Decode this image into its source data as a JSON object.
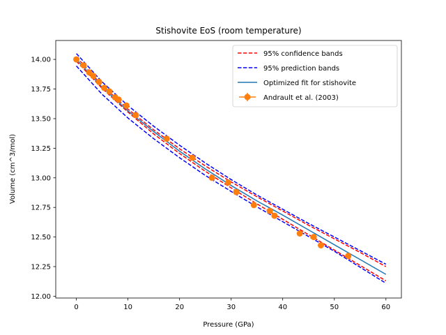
{
  "chart_data": {
    "type": "line",
    "title": "Stishovite EoS (room temperature)",
    "xlabel": "Pressure (GPa)",
    "ylabel": "Volume (cm^3/mol)",
    "xlim": [
      -4,
      63
    ],
    "ylim": [
      11.985,
      14.16
    ],
    "xticks": [
      0,
      10,
      20,
      30,
      40,
      50,
      60
    ],
    "yticks": [
      12.0,
      12.25,
      12.5,
      12.75,
      13.0,
      13.25,
      13.5,
      13.75,
      14.0
    ],
    "xtick_labels": [
      "0",
      "10",
      "20",
      "30",
      "40",
      "50",
      "60"
    ],
    "ytick_labels": [
      "12.00",
      "12.25",
      "12.50",
      "12.75",
      "13.00",
      "13.25",
      "13.50",
      "13.75",
      "14.00"
    ],
    "grid": false,
    "legend_position": "upper right",
    "legend": [
      "95% confidence bands",
      "95% prediction bands",
      "Optimized fit for stishovite",
      "Andrault et al. (2003)"
    ],
    "fit_x": [
      0,
      5,
      10,
      15,
      20,
      25,
      30,
      35,
      40,
      45,
      50,
      55,
      60
    ],
    "series": [
      {
        "name": "95% confidence bands",
        "style": "dashed",
        "color": "#ff0000",
        "values": [
          14.02,
          13.78,
          13.58,
          13.405,
          13.245,
          13.1,
          12.965,
          12.84,
          12.72,
          12.6,
          12.485,
          12.37,
          12.25
        ]
      },
      {
        "name": "95% confidence bands",
        "style": "dashed",
        "color": "#ff0000",
        "values": [
          13.985,
          13.755,
          13.555,
          13.37,
          13.205,
          13.055,
          12.915,
          12.78,
          12.65,
          12.52,
          12.39,
          12.26,
          12.13
        ]
      },
      {
        "name": "95% prediction bands",
        "style": "dashed",
        "color": "#0000ff",
        "values": [
          14.05,
          13.81,
          13.61,
          13.435,
          13.275,
          13.125,
          12.985,
          12.855,
          12.735,
          12.615,
          12.5,
          12.385,
          12.27
        ]
      },
      {
        "name": "95% prediction bands",
        "style": "dashed",
        "color": "#0000ff",
        "values": [
          13.945,
          13.705,
          13.505,
          13.33,
          13.17,
          13.02,
          12.885,
          12.755,
          12.63,
          12.505,
          12.38,
          12.245,
          12.11
        ]
      },
      {
        "name": "Optimized fit for stishovite",
        "style": "solid",
        "color": "#1f77b4",
        "values": [
          14.0,
          13.765,
          13.565,
          13.39,
          13.225,
          13.075,
          12.935,
          12.805,
          12.685,
          12.56,
          12.435,
          12.31,
          12.185
        ]
      }
    ],
    "points": {
      "name": "Andrault et al. (2003)",
      "color": "#ff7f0e",
      "x": [
        0.0,
        1.4,
        2.5,
        3.3,
        4.4,
        5.4,
        6.4,
        7.5,
        8.2,
        9.7,
        11.5,
        17.5,
        22.5,
        26.3,
        29.4,
        31.0,
        34.4,
        37.5,
        38.4,
        43.3,
        46.0,
        47.4,
        52.7
      ],
      "y": [
        14.0,
        13.95,
        13.89,
        13.86,
        13.81,
        13.76,
        13.73,
        13.68,
        13.66,
        13.61,
        13.53,
        13.33,
        13.17,
        13.0,
        12.96,
        12.88,
        12.77,
        12.72,
        12.68,
        12.53,
        12.5,
        12.43,
        12.34
      ]
    }
  }
}
